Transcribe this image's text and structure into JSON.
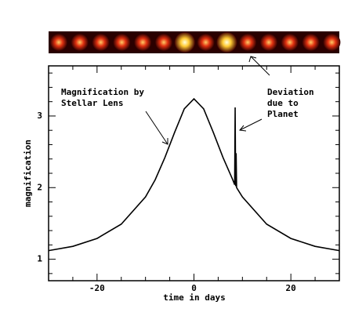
{
  "chart_data": {
    "type": "line",
    "x": [
      -30,
      -25,
      -20,
      -15,
      -10,
      -8,
      -6,
      -4,
      -2,
      0,
      2,
      4,
      6,
      8,
      8.4,
      8.5,
      8.6,
      8.7,
      8.8,
      10,
      15,
      20,
      25,
      30
    ],
    "values": [
      1.12,
      1.18,
      1.29,
      1.49,
      1.87,
      2.11,
      2.42,
      2.77,
      3.1,
      3.24,
      3.1,
      2.77,
      2.42,
      2.11,
      2.04,
      3.12,
      2.02,
      2.48,
      2.0,
      1.87,
      1.49,
      1.29,
      1.18,
      1.12
    ],
    "color": "#000000",
    "xlabel": "time in days",
    "ylabel": "magnification",
    "xlim": [
      -30,
      30
    ],
    "ylim": [
      0.7,
      3.7
    ],
    "xticks": [
      -20,
      0,
      20
    ],
    "yticks": [
      1,
      2,
      3
    ],
    "xminorticks": [
      -25,
      -15,
      -10,
      -5,
      5,
      10,
      15,
      25
    ],
    "yminorticks": [
      0.8,
      1.2,
      1.4,
      1.6,
      1.8,
      2.2,
      2.4,
      2.6,
      2.8,
      3.2,
      3.4,
      3.6
    ],
    "annotations": [
      {
        "lines": [
          "Magnification by",
          "Stellar Lens"
        ]
      },
      {
        "lines": [
          "Deviation",
          "due to",
          "Planet"
        ]
      }
    ]
  }
}
